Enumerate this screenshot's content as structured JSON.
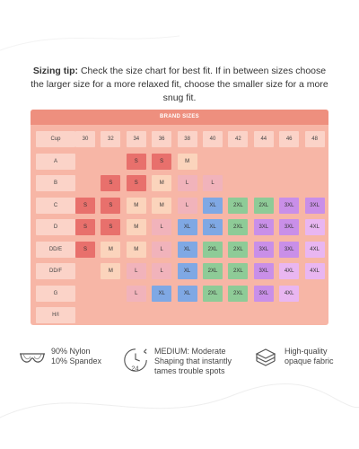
{
  "tip": {
    "bold": "Sizing tip:",
    "text": " Check the size chart for best fit. If in between sizes choose the larger size for a more relaxed fit, choose the smaller size for a more snug fit."
  },
  "chart": {
    "title": "BRAND SIZES",
    "corner": "Cup",
    "bands": [
      "30",
      "32",
      "34",
      "36",
      "38",
      "40",
      "42",
      "44",
      "46",
      "48"
    ],
    "rows": [
      {
        "cup": "A",
        "cells": [
          "",
          "",
          "S",
          "S",
          "M",
          "",
          "",
          "",
          "",
          ""
        ]
      },
      {
        "cup": "B",
        "cells": [
          "",
          "S",
          "S",
          "M",
          "L",
          "L",
          "",
          "",
          "",
          ""
        ]
      },
      {
        "cup": "C",
        "cells": [
          "S",
          "S",
          "M",
          "M",
          "L",
          "XL",
          "2XL",
          "2XL",
          "3XL",
          "3XL"
        ]
      },
      {
        "cup": "D",
        "cells": [
          "S",
          "S",
          "M",
          "L",
          "XL",
          "XL",
          "2XL",
          "3XL",
          "3XL",
          "4XL"
        ]
      },
      {
        "cup": "DD/E",
        "cells": [
          "S",
          "M",
          "M",
          "L",
          "XL",
          "2XL",
          "2XL",
          "3XL",
          "3XL",
          "4XL"
        ]
      },
      {
        "cup": "DD/F",
        "cells": [
          "",
          "M",
          "L",
          "L",
          "XL",
          "2XL",
          "2XL",
          "3XL",
          "4XL",
          "4XL"
        ]
      },
      {
        "cup": "G",
        "cells": [
          "",
          "",
          "L",
          "XL",
          "XL",
          "2XL",
          "2XL",
          "3XL",
          "4XL",
          ""
        ]
      },
      {
        "cup": "H/I",
        "cells": [
          "",
          "",
          "",
          "",
          "",
          "",
          "",
          "",
          "",
          ""
        ]
      }
    ],
    "colors": {
      "S": "#e8706c",
      "M": "#fbd4bc",
      "L": "#f1b3bb",
      "XL": "#7fa8e4",
      "2XL": "#8ecb97",
      "3XL": "#c98fe8",
      "4XL": "#e9b6f1"
    }
  },
  "features": [
    {
      "icon": "bra-icon",
      "lines": [
        "90% Nylon",
        "10% Spandex"
      ]
    },
    {
      "icon": "clock-24-icon",
      "lines": [
        "MEDIUM: Moderate",
        "Shaping that instantly",
        "tames trouble spots"
      ]
    },
    {
      "icon": "fabric-layers-icon",
      "lines": [
        "High-quality",
        "opaque fabric"
      ]
    }
  ]
}
